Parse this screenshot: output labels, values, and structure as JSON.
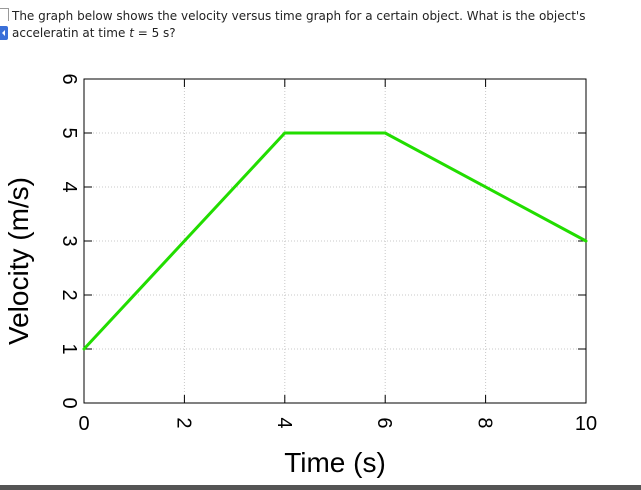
{
  "question": {
    "line1": "The graph below shows the velocity versus time graph for a certain object. What is the object's",
    "line2_pre": "acceleratin at time ",
    "line2_var": "t",
    "line2_post": " = 5 s?"
  },
  "chart_data": {
    "type": "line",
    "title": "",
    "xlabel": "Time (s)",
    "ylabel": "Velocity (m/s)",
    "xlim": [
      0,
      10
    ],
    "ylim": [
      0,
      6
    ],
    "xticks": [
      0,
      2,
      4,
      6,
      8,
      10
    ],
    "yticks": [
      0,
      1,
      2,
      3,
      4,
      5,
      6
    ],
    "grid": true,
    "series": [
      {
        "x": [
          0,
          4,
          6,
          10
        ],
        "y": [
          1,
          5,
          5,
          3
        ],
        "color": "#22dd00"
      }
    ]
  }
}
